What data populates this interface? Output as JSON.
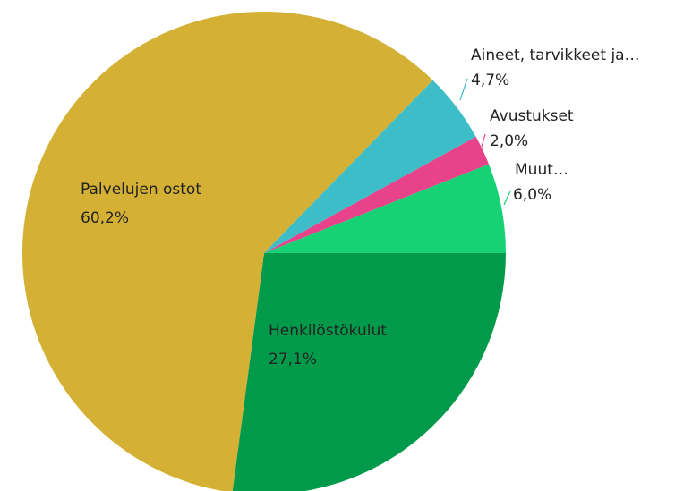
{
  "chart_data": {
    "type": "pie",
    "categories": [
      "Henkilöstökulut",
      "Palvelujen ostot",
      "Aineet, tarvikkeet ja…",
      "Avustukset",
      "Muut…"
    ],
    "values": [
      27.1,
      60.2,
      4.7,
      2.0,
      6.0
    ],
    "value_labels": [
      "27,1%",
      "60,2%",
      "4,7%",
      "2,0%",
      "6,0%"
    ],
    "colors": [
      "#009a4a",
      "#d4b035",
      "#3dbdc8",
      "#e8438a",
      "#17d175"
    ]
  }
}
